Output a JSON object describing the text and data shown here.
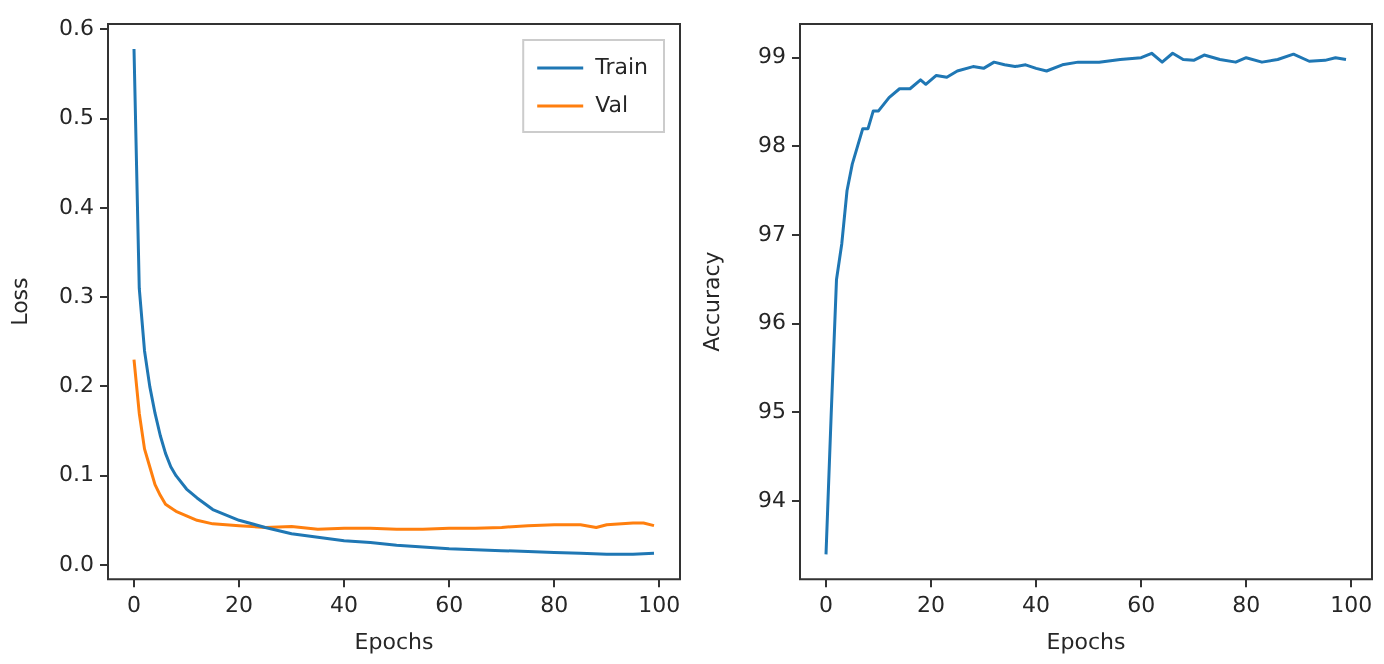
{
  "chart_data": [
    {
      "type": "line",
      "xlabel": "Epochs",
      "ylabel": "Loss",
      "xlim": [
        -4.95,
        103.95
      ],
      "ylim": [
        -0.016,
        0.606
      ],
      "xticks": [
        0,
        20,
        40,
        60,
        80,
        100
      ],
      "yticks": [
        {
          "value": 0,
          "label": "0.0"
        },
        0.1,
        0.2,
        0.3,
        0.4,
        0.5,
        0.6
      ],
      "grid": false,
      "legend": "top right",
      "marker": "none",
      "line_style": "solid",
      "series": [
        {
          "name": "Train",
          "color": "#1f77b4",
          "x": [
            0,
            1,
            2,
            3,
            4,
            5,
            6,
            7,
            8,
            10,
            12,
            15,
            20,
            25,
            30,
            35,
            40,
            45,
            50,
            55,
            60,
            65,
            70,
            75,
            80,
            85,
            90,
            95,
            99
          ],
          "values": [
            0.578,
            0.31,
            0.24,
            0.2,
            0.17,
            0.145,
            0.125,
            0.11,
            0.1,
            0.085,
            0.075,
            0.062,
            0.05,
            0.042,
            0.035,
            0.031,
            0.027,
            0.025,
            0.022,
            0.02,
            0.018,
            0.017,
            0.016,
            0.015,
            0.014,
            0.013,
            0.012,
            0.012,
            0.013
          ]
        },
        {
          "name": "Val",
          "color": "#ff7f0e",
          "x": [
            0,
            1,
            2,
            3,
            4,
            5,
            6,
            8,
            10,
            12,
            15,
            20,
            25,
            30,
            35,
            40,
            45,
            50,
            55,
            60,
            65,
            70,
            75,
            80,
            85,
            88,
            90,
            95,
            97,
            99
          ],
          "values": [
            0.23,
            0.17,
            0.13,
            0.11,
            0.09,
            0.078,
            0.068,
            0.06,
            0.055,
            0.05,
            0.046,
            0.044,
            0.042,
            0.043,
            0.04,
            0.041,
            0.041,
            0.04,
            0.04,
            0.041,
            0.041,
            0.042,
            0.044,
            0.045,
            0.045,
            0.042,
            0.045,
            0.047,
            0.047,
            0.044
          ]
        }
      ]
    },
    {
      "type": "line",
      "xlabel": "Epochs",
      "ylabel": "Accuracy",
      "xlim": [
        -4.95,
        103.95
      ],
      "ylim": [
        93.12,
        99.38
      ],
      "xticks": [
        0,
        20,
        40,
        60,
        80,
        100
      ],
      "yticks": [
        94,
        95,
        96,
        97,
        98,
        99
      ],
      "grid": false,
      "marker": "none",
      "line_style": "solid",
      "series": [
        {
          "color": "#1f77b4",
          "x": [
            0,
            1,
            2,
            3,
            4,
            5,
            6,
            7,
            8,
            9,
            10,
            12,
            14,
            16,
            18,
            19,
            21,
            23,
            25,
            28,
            30,
            32,
            34,
            36,
            38,
            40,
            42,
            45,
            48,
            52,
            56,
            60,
            62,
            64,
            66,
            68,
            70,
            72,
            75,
            78,
            80,
            83,
            86,
            89,
            92,
            95,
            97,
            99
          ],
          "values": [
            93.4,
            95.0,
            96.5,
            96.9,
            97.5,
            97.8,
            98.0,
            98.2,
            98.2,
            98.4,
            98.4,
            98.55,
            98.65,
            98.65,
            98.75,
            98.7,
            98.8,
            98.78,
            98.85,
            98.9,
            98.88,
            98.95,
            98.92,
            98.9,
            98.92,
            98.88,
            98.85,
            98.92,
            98.95,
            98.95,
            98.98,
            99.0,
            99.05,
            98.95,
            99.05,
            98.98,
            98.97,
            99.03,
            98.98,
            98.95,
            99.0,
            98.95,
            98.98,
            99.04,
            98.96,
            98.97,
            99.0,
            98.98
          ]
        }
      ]
    }
  ]
}
